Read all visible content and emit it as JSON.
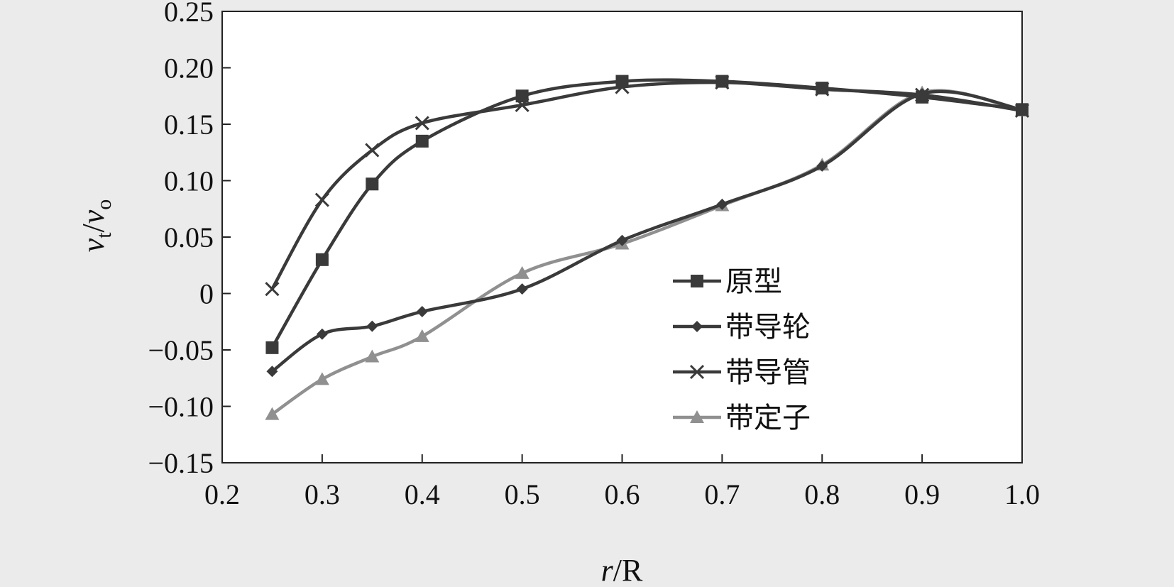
{
  "chart_data": {
    "type": "line",
    "title": "",
    "xlabel": "r/R",
    "ylabel": "vt/vo",
    "xlim": [
      0.2,
      1.0
    ],
    "ylim": [
      -0.15,
      0.25
    ],
    "x_ticks": [
      "0.2",
      "0.3",
      "0.4",
      "0.5",
      "0.6",
      "0.7",
      "0.8",
      "0.9",
      "1.0"
    ],
    "y_ticks": [
      "0.25",
      "0.20",
      "0.15",
      "0.10",
      "0.05",
      "0",
      "−0.05",
      "−0.10",
      "−0.15"
    ],
    "grid": false,
    "legend_position": "lower-right",
    "series": [
      {
        "name": "原型",
        "marker": "square",
        "color": "#3a3a3a",
        "x": [
          0.25,
          0.3,
          0.35,
          0.4,
          0.5,
          0.6,
          0.7,
          0.8,
          0.9,
          1.0
        ],
        "y": [
          -0.048,
          0.03,
          0.097,
          0.135,
          0.175,
          0.188,
          0.188,
          0.182,
          0.174,
          0.163
        ]
      },
      {
        "name": "带导轮",
        "marker": "diamond",
        "color": "#3a3a3a",
        "x": [
          0.25,
          0.3,
          0.35,
          0.4,
          0.5,
          0.6,
          0.7,
          0.8,
          0.9,
          1.0
        ],
        "y": [
          -0.069,
          -0.036,
          -0.029,
          -0.016,
          0.004,
          0.047,
          0.079,
          0.113,
          0.177,
          0.163
        ]
      },
      {
        "name": "带导管",
        "marker": "x",
        "color": "#3a3a3a",
        "x": [
          0.25,
          0.3,
          0.35,
          0.4,
          0.5,
          0.6,
          0.7,
          0.8,
          0.9,
          1.0
        ],
        "y": [
          0.004,
          0.083,
          0.127,
          0.151,
          0.167,
          0.183,
          0.187,
          0.181,
          0.176,
          0.162
        ]
      },
      {
        "name": "带定子",
        "marker": "triangle",
        "color": "#909090",
        "x": [
          0.25,
          0.3,
          0.35,
          0.4,
          0.5,
          0.6,
          0.7,
          0.8,
          0.9,
          1.0
        ],
        "y": [
          -0.107,
          -0.076,
          -0.056,
          -0.038,
          0.018,
          0.044,
          0.078,
          0.114,
          0.178,
          0.162
        ]
      }
    ]
  }
}
